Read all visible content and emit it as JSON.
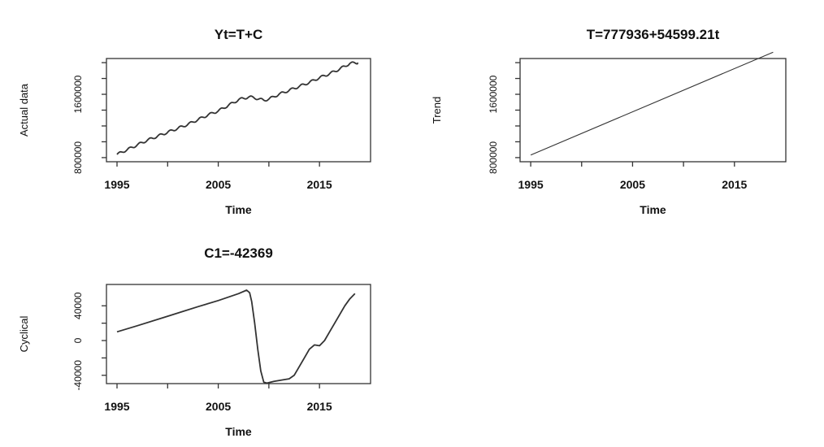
{
  "chart_data": [
    {
      "type": "line",
      "title": "Yt=T+C",
      "xlabel": "Time",
      "ylabel": "Actual data",
      "xlim": [
        1995,
        2019
      ],
      "ylim": [
        800000,
        2000000
      ],
      "xticks": [
        1995,
        2000,
        2005,
        2010,
        2015
      ],
      "xtick_labels": [
        "1995",
        "",
        "2005",
        "",
        "2015"
      ],
      "yticks": [
        800000,
        1000000,
        1200000,
        1400000,
        1600000,
        1800000,
        2000000
      ],
      "ytick_labels": [
        "800000",
        "",
        "",
        "",
        "1600000",
        "",
        ""
      ],
      "line_color": "#333333",
      "series": [
        {
          "x": [
            1995.0,
            1996.0,
            1997.0,
            1998.0,
            1999.0,
            2000.0,
            2001.0,
            2002.0,
            2003.0,
            2004.0,
            2005.0,
            2006.0,
            2007.0,
            2007.5,
            2008.0,
            2008.5,
            2009.0,
            2009.5,
            2010.0,
            2011.0,
            2012.0,
            2013.0,
            2014.0,
            2015.0,
            2016.0,
            2017.0,
            2018.0,
            2018.8
          ],
          "y": [
            840000,
            900000,
            960000,
            1020000,
            1070000,
            1120000,
            1170000,
            1220000,
            1280000,
            1340000,
            1390000,
            1460000,
            1530000,
            1550000,
            1565000,
            1560000,
            1540000,
            1525000,
            1540000,
            1600000,
            1650000,
            1700000,
            1750000,
            1810000,
            1860000,
            1920000,
            1990000,
            2000000
          ]
        }
      ],
      "seasonal_wave": {
        "amplitude": 15000,
        "period": 1
      }
    },
    {
      "type": "line",
      "title": "T=777936+54599.21t",
      "xlabel": "Time",
      "ylabel": "Trend",
      "xlim": [
        1995,
        2019
      ],
      "ylim": [
        800000,
        2000000
      ],
      "xticks": [
        1995,
        2000,
        2005,
        2010,
        2015
      ],
      "xtick_labels": [
        "1995",
        "",
        "2005",
        "",
        "2015"
      ],
      "yticks": [
        800000,
        1000000,
        1200000,
        1400000,
        1600000,
        1800000,
        2000000
      ],
      "ytick_labels": [
        "800000",
        "",
        "",
        "",
        "1600000",
        "",
        ""
      ],
      "line_color": "#333333",
      "series": [
        {
          "x": [
            1995.0,
            2018.8
          ],
          "y": [
            832535,
            2132000
          ]
        }
      ]
    },
    {
      "type": "line",
      "title": "C1=-42369",
      "xlabel": "Time",
      "ylabel": "Cyclical",
      "xlim": [
        1995,
        2019
      ],
      "ylim": [
        -45000,
        60000
      ],
      "xticks": [
        1995,
        2000,
        2005,
        2010,
        2015
      ],
      "xtick_labels": [
        "1995",
        "",
        "2005",
        "",
        "2015"
      ],
      "yticks": [
        -40000,
        -20000,
        0,
        20000,
        40000
      ],
      "ytick_labels": [
        "-40000",
        "",
        "0",
        "",
        "40000"
      ],
      "line_color": "#333333",
      "series": [
        {
          "x": [
            1995.0,
            1997.0,
            2000.0,
            2003.0,
            2005.0,
            2007.0,
            2007.8,
            2008.1,
            2008.3,
            2008.6,
            2008.9,
            2009.2,
            2009.5,
            2009.8,
            2010.5,
            2011.5,
            2012.0,
            2012.5,
            2013.0,
            2013.5,
            2014.0,
            2014.5,
            2015.0,
            2015.5,
            2016.0,
            2016.5,
            2017.0,
            2017.5,
            2018.0,
            2018.5
          ],
          "y": [
            10000,
            17000,
            28000,
            39000,
            46000,
            54000,
            58000,
            55000,
            45000,
            20000,
            -10000,
            -35000,
            -48000,
            -49000,
            -47000,
            -45000,
            -44000,
            -40000,
            -30000,
            -20000,
            -10000,
            -5000,
            -6000,
            0,
            10000,
            20000,
            30000,
            40000,
            48000,
            54000
          ]
        }
      ]
    }
  ]
}
